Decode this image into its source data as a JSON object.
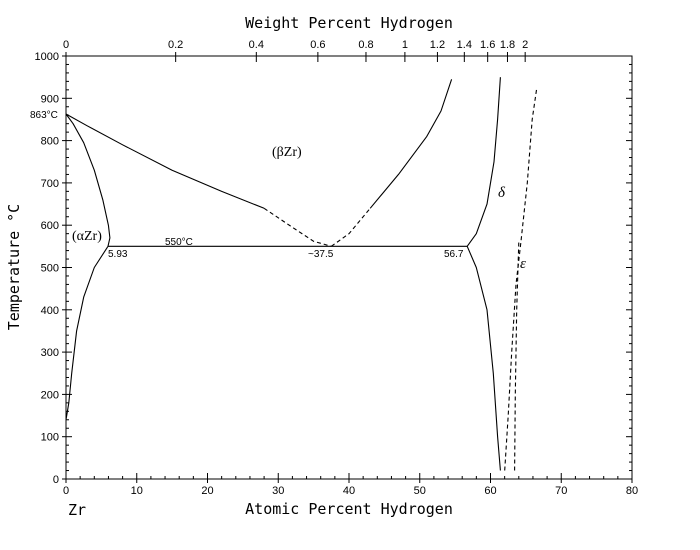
{
  "chart_data": {
    "type": "line",
    "title": "",
    "xlabel": "Atomic Percent Hydrogen",
    "x2label": "Weight Percent Hydrogen",
    "ylabel": "Temperature °C",
    "xlim": [
      0,
      80
    ],
    "ylim": [
      0,
      1000
    ],
    "x_ticks": [
      0,
      10,
      20,
      30,
      40,
      50,
      60,
      70,
      80
    ],
    "y_ticks": [
      0,
      100,
      200,
      300,
      400,
      500,
      600,
      700,
      800,
      900,
      1000
    ],
    "top_ticks": [
      {
        "wt": 0,
        "label": "0",
        "at": 0
      },
      {
        "wt": 0.2,
        "label": "0.2",
        "at": 15.5
      },
      {
        "wt": 0.4,
        "label": "0.4",
        "at": 26.9
      },
      {
        "wt": 0.6,
        "label": "0.6",
        "at": 35.6
      },
      {
        "wt": 0.8,
        "label": "0.8",
        "at": 42.4
      },
      {
        "wt": 1,
        "label": "1",
        "at": 47.9
      },
      {
        "wt": 1.2,
        "label": "1.2",
        "at": 52.5
      },
      {
        "wt": 1.4,
        "label": "1.4",
        "at": 56.3
      },
      {
        "wt": 1.6,
        "label": "1.6",
        "at": 59.6
      },
      {
        "wt": 1.8,
        "label": "1.8",
        "at": 62.4
      },
      {
        "wt": 2,
        "label": "2",
        "at": 64.9
      }
    ],
    "grid": false,
    "series": [
      {
        "style": "solid",
        "points": [
          [
            0,
            863
          ],
          [
            1,
            840
          ],
          [
            2.5,
            795
          ],
          [
            4,
            730
          ],
          [
            5.2,
            660
          ],
          [
            6,
            600
          ],
          [
            6.2,
            570
          ],
          [
            5.93,
            550
          ]
        ]
      },
      {
        "style": "solid",
        "points": [
          [
            5.93,
            550
          ],
          [
            4,
            500
          ],
          [
            2.5,
            430
          ],
          [
            1.5,
            350
          ],
          [
            0.8,
            250
          ],
          [
            0.4,
            180
          ],
          [
            0,
            140
          ]
        ]
      },
      {
        "style": "solid",
        "points": [
          [
            0,
            863
          ],
          [
            3,
            835
          ],
          [
            8,
            790
          ],
          [
            15,
            730
          ],
          [
            22,
            680
          ],
          [
            28,
            640
          ]
        ]
      },
      {
        "style": "dashed",
        "points": [
          [
            28,
            640
          ],
          [
            32,
            595
          ],
          [
            35,
            562
          ],
          [
            37.5,
            550
          ]
        ]
      },
      {
        "style": "dashed",
        "points": [
          [
            37.5,
            550
          ],
          [
            40,
            580
          ],
          [
            43,
            640
          ]
        ]
      },
      {
        "style": "solid",
        "points": [
          [
            43,
            640
          ],
          [
            47,
            720
          ],
          [
            51,
            810
          ],
          [
            53,
            870
          ],
          [
            54.5,
            945
          ]
        ]
      },
      {
        "style": "solid",
        "points": [
          [
            56.7,
            550
          ],
          [
            58,
            580
          ],
          [
            59.5,
            650
          ],
          [
            60.5,
            750
          ],
          [
            61,
            850
          ],
          [
            61.4,
            950
          ]
        ]
      },
      {
        "style": "solid",
        "points": [
          [
            56.7,
            550
          ],
          [
            58,
            500
          ],
          [
            59.5,
            400
          ],
          [
            60.4,
            250
          ],
          [
            61,
            100
          ],
          [
            61.4,
            20
          ]
        ]
      },
      {
        "style": "dashed",
        "points": [
          [
            62,
            20
          ],
          [
            62.5,
            150
          ],
          [
            63,
            300
          ],
          [
            63.6,
            460
          ],
          [
            64.3,
            560
          ],
          [
            65.2,
            700
          ],
          [
            65.9,
            850
          ],
          [
            66.5,
            920
          ]
        ]
      },
      {
        "style": "dashed",
        "points": [
          [
            63.4,
            20
          ],
          [
            63.5,
            200
          ],
          [
            63.7,
            400
          ],
          [
            64,
            560
          ]
        ]
      },
      {
        "style": "solid",
        "points": [
          [
            5.93,
            550
          ],
          [
            56.7,
            550
          ]
        ]
      }
    ],
    "annotations": {
      "t863": "863°C",
      "t550": "550°C",
      "c593": "5.93",
      "c375": "~37.5",
      "c567": "56.7",
      "alpha": "(αZr)",
      "beta": "(βZr)",
      "delta": "δ",
      "epsilon": "ε",
      "element": "Zr"
    }
  }
}
